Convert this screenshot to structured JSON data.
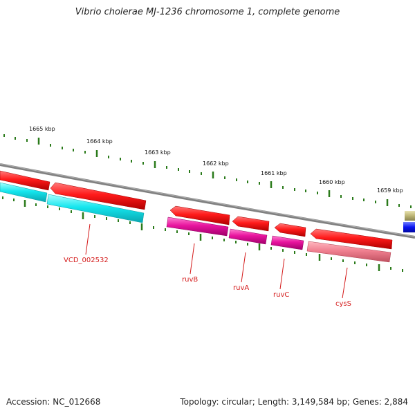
{
  "title": "Vibrio cholerae MJ-1236 chromosome 1, complete genome",
  "accession": "Accession: NC_012668",
  "summary": "Topology: circular; Length: 3,149,584 bp; Genes: 2,884",
  "scale_labels": [
    "1665 kbp",
    "1664 kbp",
    "1663 kbp",
    "1662 kbp",
    "1661 kbp",
    "1660 kbp",
    "1659 kbp"
  ],
  "gene_labels": [
    {
      "text": "VCD_002532"
    },
    {
      "text": "ruvB"
    },
    {
      "text": "ruvA"
    },
    {
      "text": "ruvC"
    },
    {
      "text": "cysS"
    }
  ],
  "colors": {
    "backbone": "#808080",
    "tick": "#2a7a1a",
    "cds_forward": "#e8121a",
    "hypothetical": "#12e0e8",
    "magenta": "#e0129a",
    "pink": "#f07a8a",
    "olive": "#b8b070",
    "blue": "#0a1aee",
    "label": "#d41a1a"
  }
}
